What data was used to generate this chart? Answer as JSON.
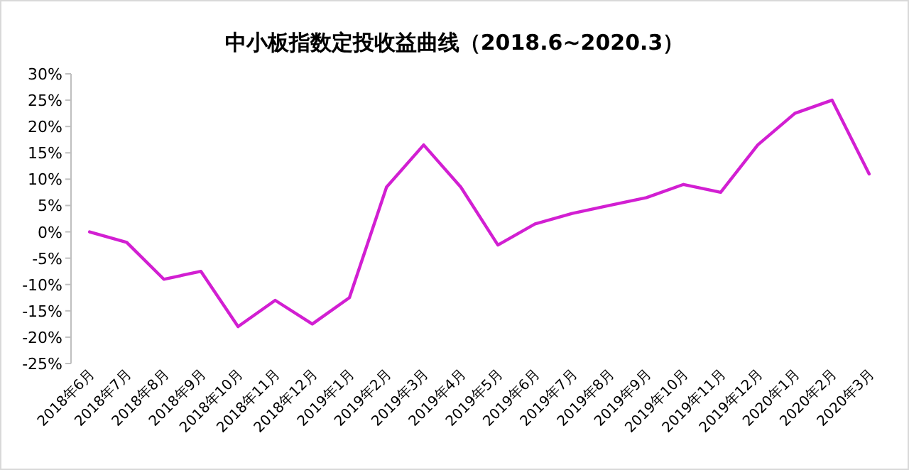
{
  "chart_data": {
    "type": "line",
    "title": "中小板指数定投收益曲线（2018.6~2020.3）",
    "categories": [
      "2018年6月",
      "2018年7月",
      "2018年8月",
      "2018年9月",
      "2018年10月",
      "2018年11月",
      "2018年12月",
      "2019年1月",
      "2019年2月",
      "2019年3月",
      "2019年4月",
      "2019年5月",
      "2019年6月",
      "2019年7月",
      "2019年8月",
      "2019年9月",
      "2019年10月",
      "2019年11月",
      "2019年12月",
      "2020年1月",
      "2020年2月",
      "2020年3月"
    ],
    "series": [
      {
        "color": "#d21fd2",
        "values": [
          0,
          -2,
          -9,
          -7.5,
          -18,
          -13,
          -17.5,
          -12.5,
          8.5,
          16.5,
          8.5,
          -2.5,
          1.5,
          3.5,
          5,
          6.5,
          9,
          7.5,
          16.5,
          22.5,
          25,
          11
        ]
      }
    ],
    "ylim": [
      -25,
      30
    ],
    "yticks": [
      {
        "value": -25,
        "label": "-25%"
      },
      {
        "value": -20,
        "label": "-20%"
      },
      {
        "value": -15,
        "label": "-15%"
      },
      {
        "value": -10,
        "label": "-10%"
      },
      {
        "value": -5,
        "label": "-5%"
      },
      {
        "value": 0,
        "label": "0%"
      },
      {
        "value": 5,
        "label": "5%"
      },
      {
        "value": 10,
        "label": "10%"
      },
      {
        "value": 15,
        "label": "15%"
      },
      {
        "value": 20,
        "label": "20%"
      },
      {
        "value": 25,
        "label": "25%"
      },
      {
        "value": 30,
        "label": "30%"
      }
    ],
    "grid": false,
    "marker": "none",
    "line_style": "solid"
  }
}
